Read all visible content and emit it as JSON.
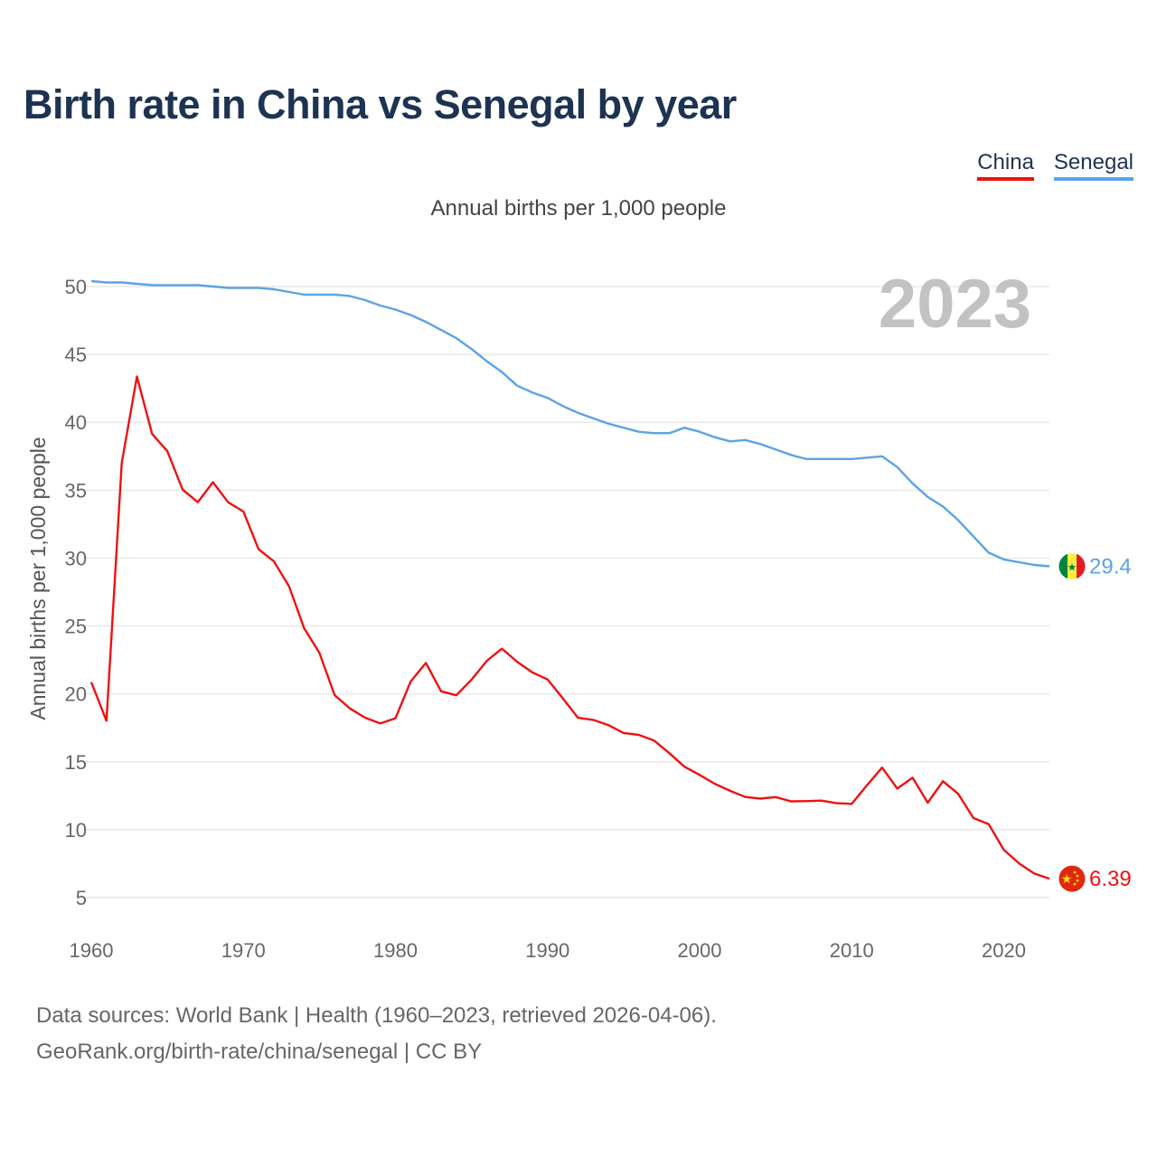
{
  "title": "Birth rate in China vs Senegal by year",
  "subtitle": "Annual births per 1,000 people",
  "legend": [
    {
      "label": "China",
      "color": "#ee1111"
    },
    {
      "label": "Senegal",
      "color": "#5ba3e6"
    }
  ],
  "footer": {
    "line1": "Data sources: World Bank | Health (1960–2023, retrieved 2026-04-06).",
    "line2": "GeoRank.org/birth-rate/china/senegal | CC BY"
  },
  "chart_data": {
    "type": "line",
    "title": "Birth rate in China vs Senegal by year",
    "subtitle": "Annual births per 1,000 people",
    "xlabel": "",
    "ylabel": "Annual births per 1,000 people",
    "xlim": [
      1960,
      2023
    ],
    "ylim": [
      5,
      50
    ],
    "xticks": [
      1960,
      1970,
      1980,
      1990,
      2000,
      2010,
      2020
    ],
    "yticks": [
      5,
      10,
      15,
      20,
      25,
      30,
      35,
      40,
      45,
      50
    ],
    "grid": true,
    "legend_position": "top-right",
    "annotation": "2023",
    "x": [
      1960,
      1961,
      1962,
      1963,
      1964,
      1965,
      1966,
      1967,
      1968,
      1969,
      1970,
      1971,
      1972,
      1973,
      1974,
      1975,
      1976,
      1977,
      1978,
      1979,
      1980,
      1981,
      1982,
      1983,
      1984,
      1985,
      1986,
      1987,
      1988,
      1989,
      1990,
      1991,
      1992,
      1993,
      1994,
      1995,
      1996,
      1997,
      1998,
      1999,
      2000,
      2001,
      2002,
      2003,
      2004,
      2005,
      2006,
      2007,
      2008,
      2009,
      2010,
      2011,
      2012,
      2013,
      2014,
      2015,
      2016,
      2017,
      2018,
      2019,
      2020,
      2021,
      2022,
      2023
    ],
    "series": [
      {
        "name": "China",
        "color": "#ee1111",
        "end_label": "6.39",
        "flag": "china-flag",
        "values": [
          20.86,
          18.02,
          37.01,
          43.37,
          39.14,
          37.88,
          35.05,
          34.12,
          35.59,
          34.11,
          33.43,
          30.65,
          29.77,
          27.93,
          24.82,
          23.01,
          19.91,
          18.93,
          18.25,
          17.82,
          18.21,
          20.91,
          22.28,
          20.19,
          19.9,
          21.04,
          22.43,
          23.33,
          22.37,
          21.58,
          21.06,
          19.68,
          18.24,
          18.09,
          17.7,
          17.12,
          16.98,
          16.57,
          15.64,
          14.64,
          14.03,
          13.38,
          12.86,
          12.41,
          12.29,
          12.4,
          12.09,
          12.1,
          12.14,
          11.95,
          11.9,
          13.27,
          14.57,
          13.03,
          13.83,
          11.99,
          13.57,
          12.64,
          10.86,
          10.41,
          8.52,
          7.52,
          6.77,
          6.39
        ]
      },
      {
        "name": "Senegal",
        "color": "#5ba3e6",
        "end_label": "29.4",
        "flag": "senegal-flag",
        "values": [
          50.4,
          50.3,
          50.3,
          50.2,
          50.1,
          50.1,
          50.1,
          50.1,
          50.0,
          49.9,
          49.9,
          49.9,
          49.8,
          49.6,
          49.4,
          49.4,
          49.4,
          49.3,
          49.0,
          48.6,
          48.3,
          47.9,
          47.4,
          46.8,
          46.2,
          45.4,
          44.5,
          43.7,
          42.7,
          42.2,
          41.8,
          41.2,
          40.7,
          40.3,
          39.9,
          39.6,
          39.3,
          39.2,
          39.2,
          39.6,
          39.3,
          38.9,
          38.6,
          38.7,
          38.4,
          38.0,
          37.6,
          37.3,
          37.3,
          37.3,
          37.3,
          37.4,
          37.5,
          36.7,
          35.5,
          34.5,
          33.8,
          32.8,
          31.6,
          30.4,
          29.9,
          29.7,
          29.5,
          29.4
        ]
      }
    ]
  }
}
